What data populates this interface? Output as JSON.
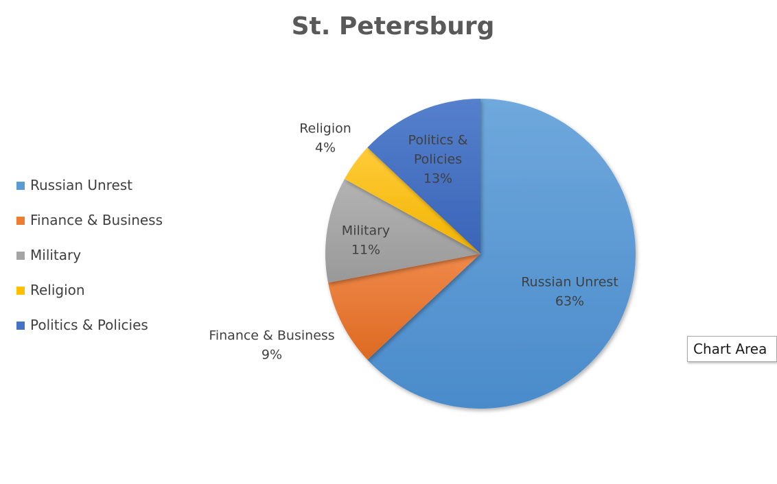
{
  "chart_data": {
    "type": "pie",
    "title": "St. Petersburg",
    "categories": [
      "Russian Unrest",
      "Finance & Business",
      "Military",
      "Religion",
      "Politics & Policies"
    ],
    "values": [
      63,
      9,
      11,
      4,
      13
    ],
    "value_labels": [
      "63%",
      "9%",
      "11%",
      "4%",
      "13%"
    ],
    "slice_labels": [
      [
        "Russian Unrest"
      ],
      [
        "Finance & Business"
      ],
      [
        "Military"
      ],
      [
        "Religion"
      ],
      [
        "Politics &",
        "Policies"
      ]
    ],
    "colors": [
      "#5B9BD5",
      "#ED7D31",
      "#A5A5A5",
      "#FFC000",
      "#4472C4"
    ],
    "legend_position": "left"
  },
  "tooltip": {
    "text": "Chart Area"
  }
}
